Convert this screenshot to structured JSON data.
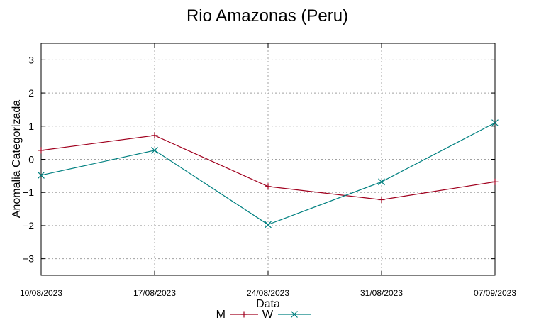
{
  "chart_data": {
    "type": "line",
    "title": "Rio Amazonas (Peru)",
    "xlabel": "Data",
    "ylabel": "Anomalia Categorizada",
    "categories": [
      "10/08/2023",
      "17/08/2023",
      "24/08/2023",
      "31/08/2023",
      "07/09/2023"
    ],
    "ylim": [
      -3.5,
      3.5
    ],
    "yticks": [
      -3,
      -2,
      -1,
      0,
      1,
      2,
      3
    ],
    "grid": true,
    "legend_position": "bottom-center",
    "series": [
      {
        "name": "M",
        "color": "#a0001e",
        "marker": "plus",
        "values": [
          0.27,
          0.72,
          -0.82,
          -1.22,
          -0.68
        ]
      },
      {
        "name": "W",
        "color": "#008080",
        "marker": "cross",
        "values": [
          -0.48,
          0.27,
          -1.97,
          -0.68,
          1.1
        ]
      }
    ]
  }
}
